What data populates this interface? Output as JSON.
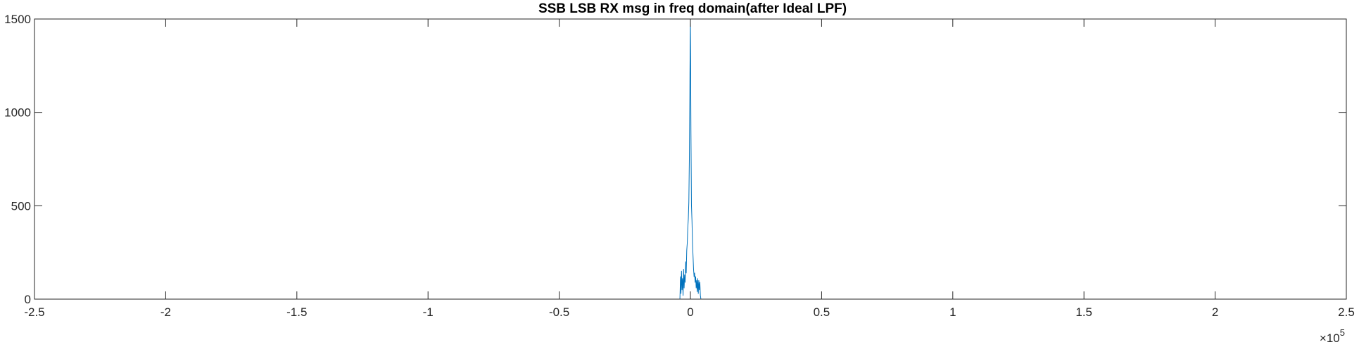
{
  "chart_data": {
    "type": "line",
    "title": "SSB LSB RX msg in freq domain(after Ideal LPF)",
    "xlabel": "",
    "ylabel": "",
    "xlim": [
      -250000,
      250000
    ],
    "ylim": [
      0,
      1500
    ],
    "x_ticks": [
      -250000,
      -200000,
      -150000,
      -100000,
      -50000,
      0,
      50000,
      100000,
      150000,
      200000,
      250000
    ],
    "x_tick_labels": [
      "-2.5",
      "-2",
      "-1.5",
      "-1",
      "-0.5",
      "0",
      "0.5",
      "1",
      "1.5",
      "2",
      "2.5"
    ],
    "y_ticks": [
      0,
      500,
      1000,
      1500
    ],
    "y_tick_labels": [
      "0",
      "500",
      "1000",
      "1500"
    ],
    "x_exponent": {
      "base": "×10",
      "power": "5"
    },
    "grid": false,
    "series": [
      {
        "color": "#0072BD",
        "x": [
          -250000,
          -4000,
          -3800,
          -3600,
          -3400,
          -3200,
          -3000,
          -2800,
          -2600,
          -2400,
          -2200,
          -2000,
          -1800,
          -1600,
          -1400,
          -1200,
          -1000,
          -800,
          -600,
          -400,
          -300,
          -200,
          -100,
          0,
          100,
          200,
          300,
          400,
          600,
          800,
          1000,
          1200,
          1400,
          1600,
          1800,
          2000,
          2200,
          2400,
          2600,
          2800,
          3000,
          3200,
          3400,
          3600,
          3800,
          4000,
          250000
        ],
        "y": [
          0,
          0,
          120,
          30,
          150,
          50,
          110,
          20,
          160,
          60,
          130,
          90,
          200,
          140,
          260,
          300,
          380,
          430,
          520,
          750,
          950,
          1150,
          1350,
          1500,
          1200,
          900,
          700,
          500,
          420,
          300,
          230,
          160,
          120,
          140,
          90,
          120,
          60,
          100,
          40,
          110,
          30,
          100,
          50,
          90,
          20,
          0,
          0
        ]
      }
    ]
  }
}
